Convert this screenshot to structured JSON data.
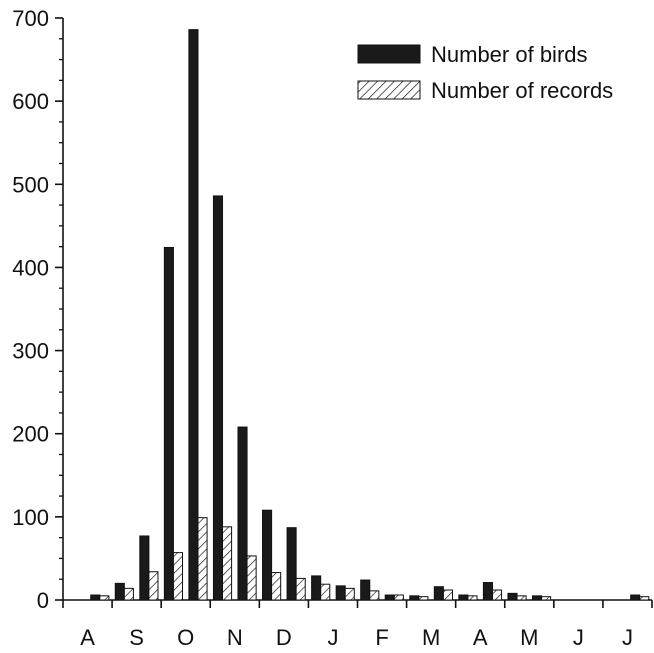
{
  "chart_data": {
    "type": "bar",
    "title": "",
    "xlabel": "",
    "ylabel": "",
    "ylim": [
      0,
      700
    ],
    "yticks": [
      0,
      100,
      200,
      300,
      400,
      500,
      600,
      700
    ],
    "month_labels": [
      "A",
      "S",
      "O",
      "N",
      "D",
      "J",
      "F",
      "M",
      "A",
      "M",
      "J",
      "J"
    ],
    "periods_per_month": 2,
    "grid": false,
    "legend_position": "top-right",
    "series": [
      {
        "name": "Number of birds",
        "fill": "#1a1a1a",
        "pattern": "solid",
        "values": [
          0,
          6,
          20,
          77,
          424,
          686,
          486,
          208,
          108,
          87,
          29,
          17,
          24,
          6,
          5,
          16,
          6,
          21,
          8,
          5,
          0,
          0,
          0,
          6
        ]
      },
      {
        "name": "Number of records",
        "fill": "#ffffff",
        "pattern": "hatched",
        "values": [
          0,
          5,
          14,
          34,
          57,
          99,
          88,
          53,
          33,
          26,
          19,
          14,
          11,
          6,
          4,
          12,
          5,
          12,
          5,
          4,
          0,
          0,
          0,
          4
        ]
      }
    ]
  }
}
